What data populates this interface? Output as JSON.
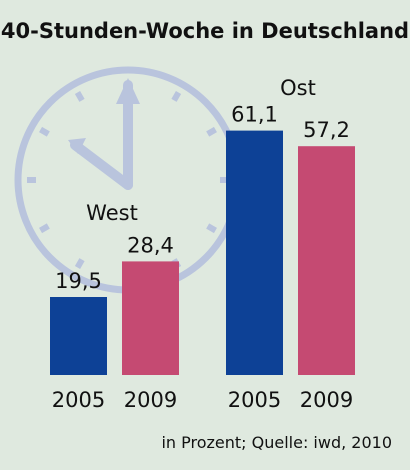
{
  "chart_data": {
    "type": "bar",
    "title": "40-Stunden-Woche in Deutschland",
    "groups": [
      {
        "name": "West",
        "categories": [
          "2005",
          "2009"
        ],
        "values": [
          19.5,
          28.4
        ],
        "value_labels": [
          "19,5",
          "28,4"
        ]
      },
      {
        "name": "Ost",
        "categories": [
          "2005",
          "2009"
        ],
        "values": [
          61.1,
          57.2
        ],
        "value_labels": [
          "61,1",
          "57,2"
        ]
      }
    ],
    "series_colors": {
      "2005": "#0d4196",
      "2009": "#c54a72"
    },
    "background_icon": "clock-icon",
    "source_note": "in Prozent; Quelle: iwd, 2010",
    "ylim": [
      0,
      70
    ]
  }
}
